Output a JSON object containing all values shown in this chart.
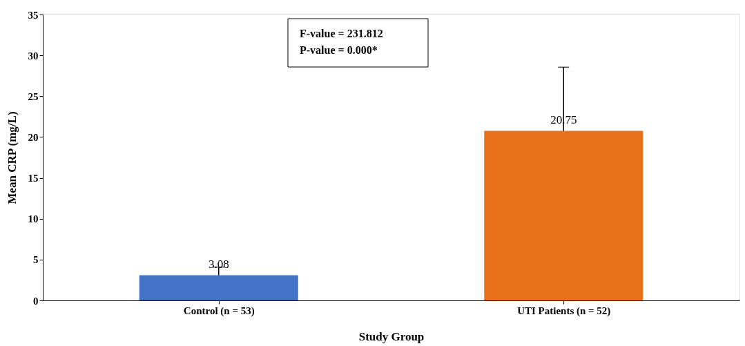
{
  "chart_data": {
    "type": "bar",
    "xlabel": "Study Group",
    "ylabel": "Mean CRP (mg/L)",
    "categories": [
      "Control (n = 53)",
      "UTI Patients (n = 52)"
    ],
    "values": [
      3.08,
      20.75
    ],
    "colors": [
      "#4472c4",
      "#e8711c"
    ],
    "errors": [
      1.0,
      7.8
    ],
    "data_labels": true,
    "ylim": [
      0,
      35
    ],
    "yticks": [
      0,
      5,
      10,
      15,
      20,
      25,
      30,
      35
    ],
    "grid": false,
    "annotations": [
      "F-value = 231.812",
      "P-value = 0.000*"
    ]
  }
}
